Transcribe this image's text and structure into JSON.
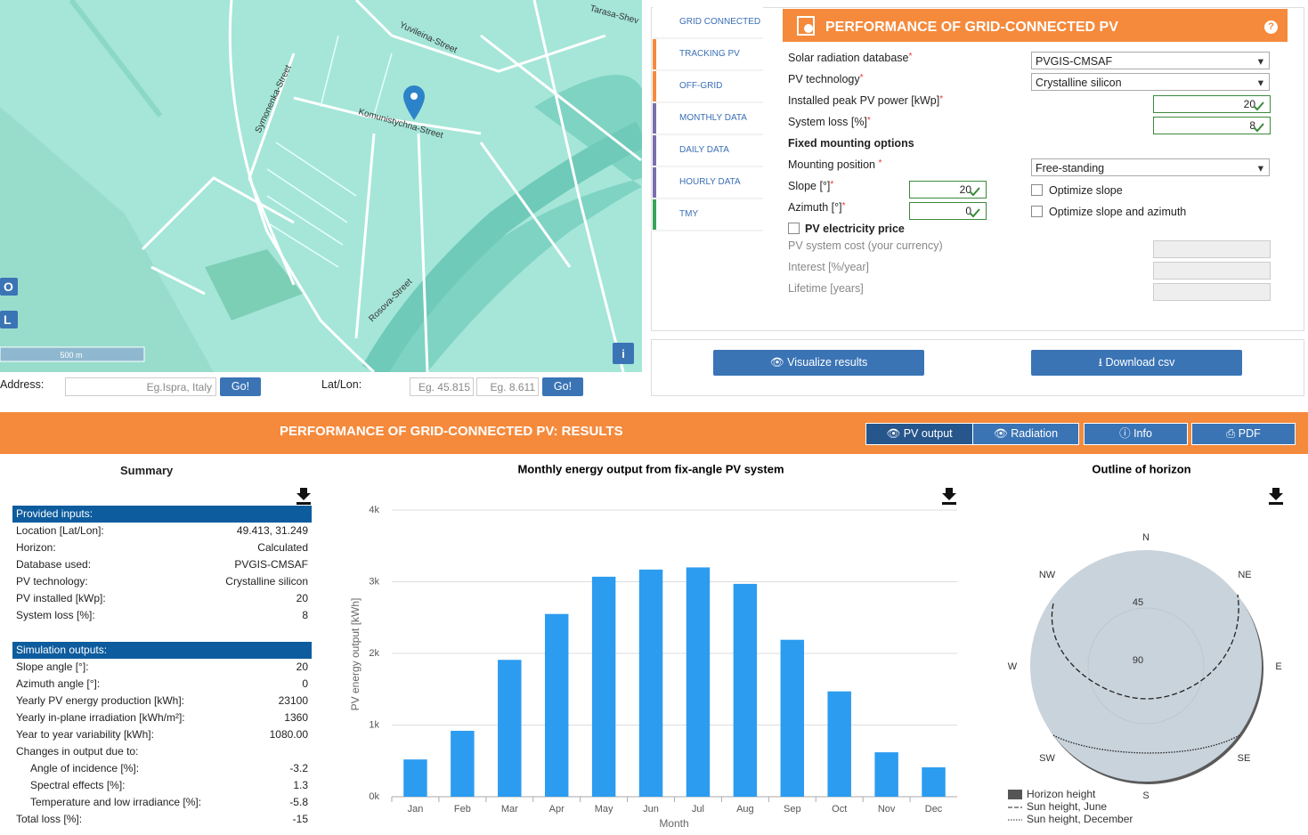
{
  "map": {
    "streets": [
      "Yuvileina-Street",
      "Komunistychna-Street",
      "Symonenka-Street",
      "Rosova-Street",
      "Tarasa-Shev"
    ],
    "zoom_in": "O",
    "zoom_out": "L",
    "info": "i",
    "scale": "500 m"
  },
  "address": {
    "label": "Address:",
    "placeholder": "Eg.Ispra, Italy",
    "go": "Go!",
    "latlon_label": "Lat/Lon:",
    "lat_placeholder": "Eg. 45.815",
    "lon_placeholder": "Eg. 8.611",
    "go_latlon": "Go!"
  },
  "tabs": [
    "GRID CONNECTED",
    "TRACKING PV",
    "OFF-GRID",
    "MONTHLY DATA",
    "DAILY DATA",
    "HOURLY DATA",
    "TMY"
  ],
  "form": {
    "title": "PERFORMANCE OF GRID-CONNECTED PV",
    "help": "?",
    "required_mark": "*",
    "database_label": "Solar radiation database",
    "database_value": "PVGIS-CMSAF",
    "technology_label": "PV technology",
    "technology_value": "Crystalline silicon",
    "power_label": "Installed peak PV power [kWp]",
    "power_value": "20",
    "loss_label": "System loss [%]",
    "loss_value": "8",
    "mounting_heading": "Fixed mounting options",
    "position_label": "Mounting position",
    "position_value": "Free-standing",
    "slope_label": "Slope [°]",
    "slope_value": "20",
    "optimize_slope": "Optimize slope",
    "azimuth_label": "Azimuth [°]",
    "azimuth_value": "0",
    "optimize_both": "Optimize slope and azimuth",
    "price_heading": "PV electricity price",
    "cost_label": "PV system cost (your currency)",
    "interest_label": "Interest [%/year]",
    "lifetime_label": "Lifetime [years]"
  },
  "actions": {
    "visualize": "Visualize results",
    "download": "Download csv"
  },
  "results": {
    "title": "PERFORMANCE OF GRID-CONNECTED PV: RESULTS",
    "buttons": [
      "PV output",
      "Radiation",
      "Info",
      "PDF"
    ]
  },
  "summary": {
    "title": "Summary",
    "inputs_heading": "Provided inputs:",
    "inputs": [
      [
        "Location [Lat/Lon]:",
        "49.413, 31.249"
      ],
      [
        "Horizon:",
        "Calculated"
      ],
      [
        "Database used:",
        "PVGIS-CMSAF"
      ],
      [
        "PV technology:",
        "Crystalline silicon"
      ],
      [
        "PV installed [kWp]:",
        "20"
      ],
      [
        "System loss [%]:",
        "8"
      ]
    ],
    "outputs_heading": "Simulation outputs:",
    "outputs": [
      [
        "Slope angle [°]:",
        "20"
      ],
      [
        "Azimuth angle [°]:",
        "0"
      ],
      [
        "Yearly PV energy production [kWh]:",
        "23100"
      ],
      [
        "Yearly in-plane irradiation [kWh/m²]:",
        "1360"
      ],
      [
        "Year to year variability [kWh]:",
        "1080.00"
      ],
      [
        "Changes in output due to:",
        ""
      ],
      [
        "Angle of incidence [%]:",
        "-3.2"
      ],
      [
        "Spectral effects [%]:",
        "1.3"
      ],
      [
        "Temperature and low irradiance [%]:",
        "-5.8"
      ],
      [
        "Total loss [%]:",
        "-15"
      ]
    ]
  },
  "chart_data": {
    "type": "bar",
    "title": "Monthly energy output from fix-angle PV system",
    "x_label": "Month",
    "y_label": "PV energy output [kWh]",
    "categories": [
      "Jan",
      "Feb",
      "Mar",
      "Apr",
      "May",
      "Jun",
      "Jul",
      "Aug",
      "Sep",
      "Oct",
      "Nov",
      "Dec"
    ],
    "values": [
      520,
      920,
      1910,
      2550,
      3070,
      3170,
      3200,
      2970,
      2190,
      1470,
      620,
      410
    ],
    "color": "#2c9cf0",
    "ylim": [
      0,
      4000
    ],
    "grid": true,
    "yticks": [
      {
        "value": 0,
        "label": "0k"
      },
      {
        "value": 1000,
        "label": "1k"
      },
      {
        "value": 2000,
        "label": "2k"
      },
      {
        "value": 3000,
        "label": "3k"
      },
      {
        "value": 4000,
        "label": "4k"
      }
    ]
  },
  "horizon": {
    "title": "Outline of horizon",
    "directions": [
      "N",
      "NE",
      "E",
      "SE",
      "S",
      "SW",
      "W",
      "NW"
    ],
    "rings": [
      "45",
      "90"
    ],
    "legend": [
      "Horizon height",
      "Sun height, June",
      "Sun height, December"
    ]
  }
}
